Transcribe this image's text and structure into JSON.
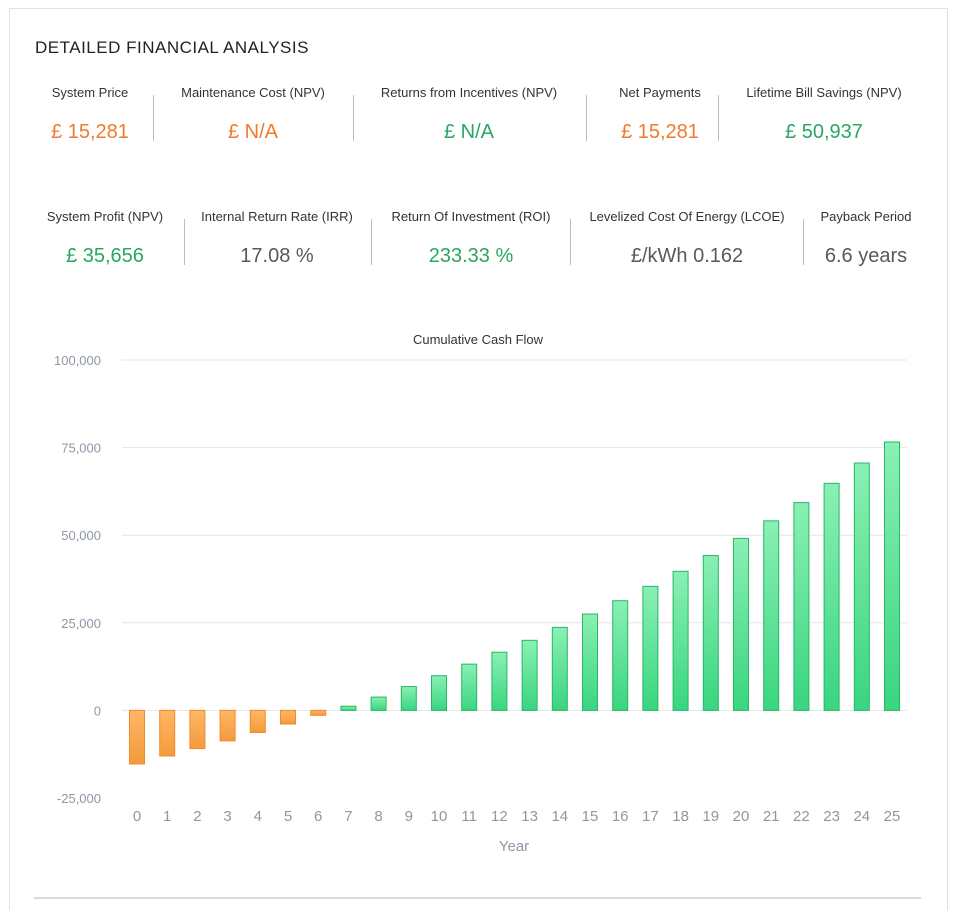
{
  "section_title": "DETAILED FINANCIAL ANALYSIS",
  "metrics_row1": [
    {
      "label": "System Price",
      "value": "£ 15,281",
      "tone": "orange"
    },
    {
      "label": "Maintenance Cost (NPV)",
      "value": "£ N/A",
      "tone": "orange"
    },
    {
      "label": "Returns from Incentives (NPV)",
      "value": "£ N/A",
      "tone": "green"
    },
    {
      "label": "Net Payments",
      "value": "£ 15,281",
      "tone": "orange"
    },
    {
      "label": "Lifetime Bill Savings (NPV)",
      "value": "£ 50,937",
      "tone": "green"
    }
  ],
  "metrics_row2": [
    {
      "label": "System Profit (NPV)",
      "value": "£ 35,656",
      "tone": "green"
    },
    {
      "label": "Internal Return Rate (IRR)",
      "value": "17.08 %",
      "tone": "gray"
    },
    {
      "label": "Return Of Investment (ROI)",
      "value": "233.33 %",
      "tone": "green"
    },
    {
      "label": "Levelized Cost Of Energy (LCOE)",
      "value": "£/kWh 0.162",
      "tone": "gray"
    },
    {
      "label": "Payback Period",
      "value": "6.6 years",
      "tone": "gray"
    }
  ],
  "colors": {
    "orange": "#f07a2c",
    "green": "#2aa564",
    "gray": "#555a5e",
    "bar_negative_top": "#ffb766",
    "bar_negative_bottom": "#f49a3c",
    "bar_negative_stroke": "#f08a2a",
    "bar_positive_top": "#8af0b4",
    "bar_positive_bottom": "#39d57f",
    "bar_positive_stroke": "#25b865",
    "grid": "#e6e6e6",
    "tick": "#8d97a5"
  },
  "chart_data": {
    "type": "bar",
    "title": "Cumulative Cash Flow",
    "xlabel": "Year",
    "ylabel": "",
    "categories": [
      "0",
      "1",
      "2",
      "3",
      "4",
      "5",
      "6",
      "7",
      "8",
      "9",
      "10",
      "11",
      "12",
      "13",
      "14",
      "15",
      "16",
      "17",
      "18",
      "19",
      "20",
      "21",
      "22",
      "23",
      "24",
      "25"
    ],
    "values": [
      -15281,
      -13000,
      -10900,
      -8700,
      -6300,
      -3900,
      -1400,
      1200,
      3800,
      6800,
      9900,
      13200,
      16600,
      20000,
      23700,
      27500,
      31300,
      35400,
      39700,
      44200,
      49100,
      54100,
      59300,
      64800,
      70600,
      76600
    ],
    "y_ticks": [
      100000,
      75000,
      50000,
      25000,
      0,
      -25000
    ],
    "y_tick_labels": [
      "100,000",
      "75,000",
      "50,000",
      "25,000",
      "0",
      "-25,000"
    ],
    "ylim": [
      -25000,
      100000
    ],
    "grid": true,
    "legend": "none"
  }
}
